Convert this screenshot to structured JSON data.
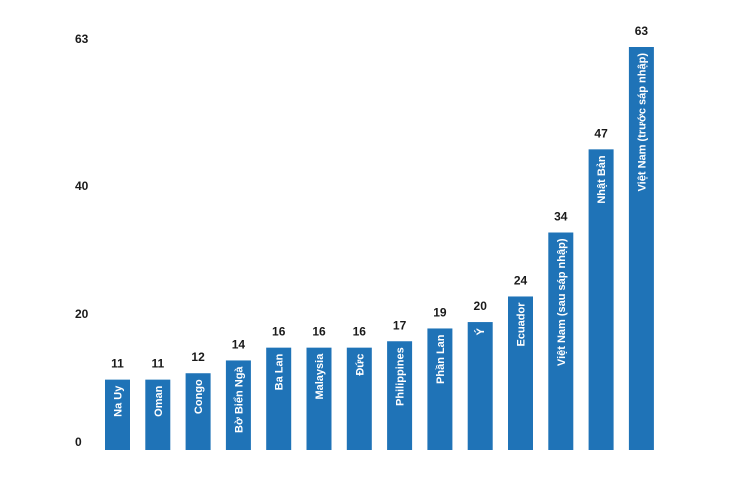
{
  "chart_data": {
    "type": "bar",
    "categories": [
      "Na Uy",
      "Oman",
      "Congo",
      "Bờ Biển Ngà",
      "Ba Lan",
      "Malaysia",
      "Đức",
      "Philippines",
      "Phần Lan",
      "Ý",
      "Ecuador",
      "Việt Nam (sau sáp nhập)",
      "Nhật Bản",
      "Việt Nam (trước sáp nhập)"
    ],
    "values": [
      11,
      11,
      12,
      14,
      16,
      16,
      16,
      17,
      19,
      20,
      24,
      34,
      47,
      63
    ],
    "y_ticks": [
      0,
      20,
      40,
      63
    ],
    "ylim": [
      0,
      63
    ],
    "title": "",
    "xlabel": "",
    "ylabel": "",
    "grid": false,
    "bar_color": "#1f73b7",
    "label_color": "#ffffff",
    "text_color": "#1a1a1a"
  }
}
